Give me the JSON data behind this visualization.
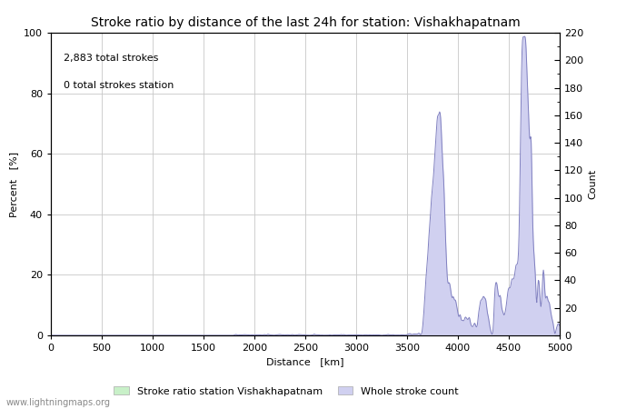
{
  "title": "Stroke ratio by distance of the last 24h for station: Vishakhapatnam",
  "xlabel": "Distance   [km]",
  "ylabel_left": "Percent   [%]",
  "ylabel_right": "Count",
  "annotation_line1": "2,883 total strokes",
  "annotation_line2": "0 total strokes station",
  "xlim": [
    0,
    5000
  ],
  "ylim_left": [
    0,
    100
  ],
  "ylim_right": [
    0,
    220
  ],
  "yticks_left": [
    0,
    20,
    40,
    60,
    80,
    100
  ],
  "yticks_right_major": [
    0,
    20,
    40,
    60,
    80,
    100,
    120,
    140,
    160,
    180,
    200,
    220
  ],
  "xticks": [
    0,
    500,
    1000,
    1500,
    2000,
    2500,
    3000,
    3500,
    4000,
    4500,
    5000
  ],
  "legend_label_green": "Stroke ratio station Vishakhapatnam",
  "legend_label_blue": "Whole stroke count",
  "watermark": "www.lightningmaps.org",
  "color_blue_fill": "#d0d0f0",
  "color_blue_line": "#8080c0",
  "color_green_fill": "#c8f0c8",
  "color_green_line": "#80c080",
  "background_color": "#ffffff",
  "grid_color": "#c8c8c8",
  "title_fontsize": 10,
  "axis_label_fontsize": 8,
  "tick_fontsize": 8,
  "annotation_fontsize": 8
}
